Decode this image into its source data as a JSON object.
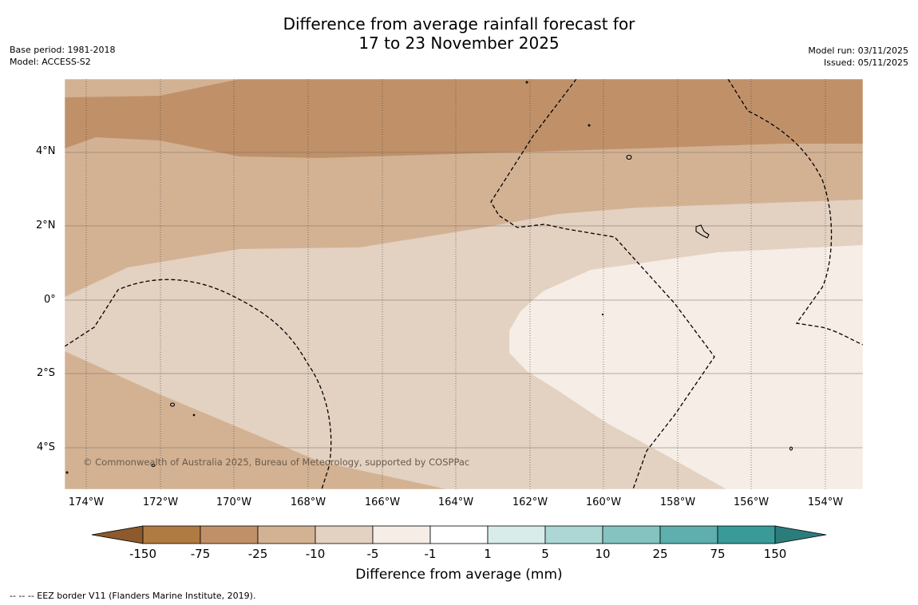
{
  "title": {
    "line1": "Difference from average rainfall forecast for",
    "line2": "17 to 23 November 2025"
  },
  "meta_left": {
    "base_period": "Base period: 1981-2018",
    "model": "Model: ACCESS-S2"
  },
  "meta_right": {
    "model_run": "Model run: 03/11/2025",
    "issued": "Issued: 05/11/2025"
  },
  "copyright": "© Commonwealth of Australia 2025, Bureau of Meteorology, supported by COSPPac",
  "map": {
    "lat_labels": [
      "4°N",
      "2°N",
      "0°",
      "2°S",
      "4°S"
    ],
    "lon_labels": [
      "174°W",
      "172°W",
      "170°W",
      "168°W",
      "166°W",
      "164°W",
      "162°W",
      "160°W",
      "158°W",
      "156°W",
      "154°W"
    ]
  },
  "colorbar": {
    "title": "Difference from average (mm)",
    "tick_labels": [
      "-150",
      "-75",
      "-25",
      "-10",
      "-5",
      "-1",
      "1",
      "5",
      "10",
      "25",
      "75",
      "150"
    ],
    "colors": [
      "#8c5a2c",
      "#b07a43",
      "#c09169",
      "#d3b294",
      "#e3d1c1",
      "#f5ede6",
      "#ffffff",
      "#d8ecea",
      "#acd7d5",
      "#84c3c0",
      "#5eafad",
      "#3a9a98",
      "#2a7d7b"
    ]
  },
  "footnote": "--  --  -- EEZ border V11 (Flanders Marine Institute, 2019)."
}
